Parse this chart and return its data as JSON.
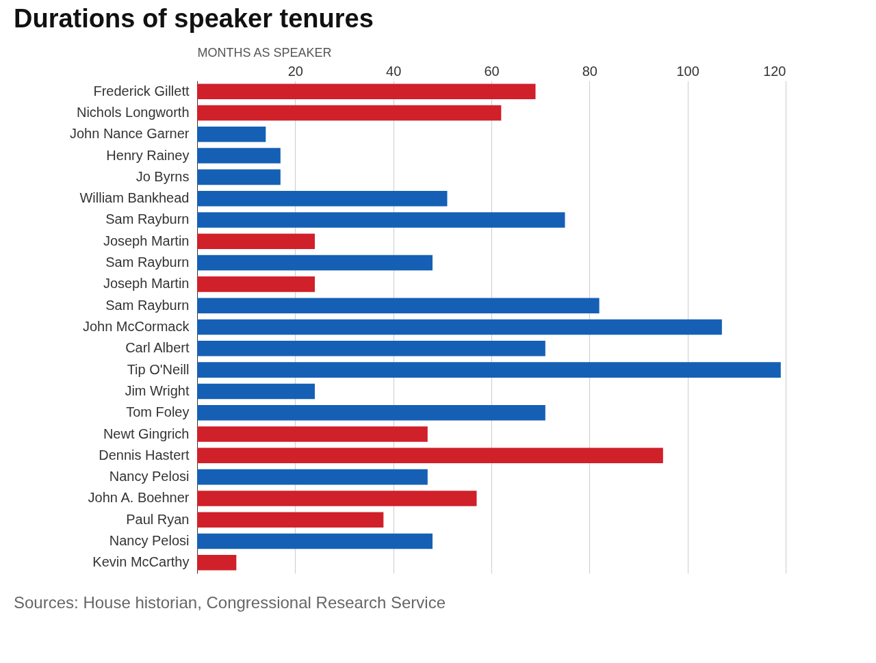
{
  "chart_data": {
    "type": "bar",
    "orientation": "horizontal",
    "title": "Durations of speaker tenures",
    "xlabel": "MONTHS AS SPEAKER",
    "categories": [
      "Frederick Gillett",
      "Nichols Longworth",
      "John Nance Garner",
      "Henry Rainey",
      "Jo Byrns",
      "William Bankhead",
      "Sam Rayburn",
      "Joseph Martin",
      "Sam Rayburn",
      "Joseph Martin",
      "Sam Rayburn",
      "John McCormack",
      "Carl Albert",
      "Tip O'Neill",
      "Jim Wright",
      "Tom Foley",
      "Newt Gingrich",
      "Dennis Hastert",
      "Nancy Pelosi",
      "John A. Boehner",
      "Paul Ryan",
      "Nancy Pelosi",
      "Kevin McCarthy"
    ],
    "values": [
      69,
      62,
      14,
      17,
      17,
      51,
      75,
      24,
      48,
      24,
      82,
      107,
      71,
      119,
      24,
      71,
      47,
      95,
      47,
      57,
      38,
      48,
      8
    ],
    "colors": [
      "#d0202a",
      "#d0202a",
      "#1560b5",
      "#1560b5",
      "#1560b5",
      "#1560b5",
      "#1560b5",
      "#d0202a",
      "#1560b5",
      "#d0202a",
      "#1560b5",
      "#1560b5",
      "#1560b5",
      "#1560b5",
      "#1560b5",
      "#1560b5",
      "#d0202a",
      "#d0202a",
      "#1560b5",
      "#d0202a",
      "#d0202a",
      "#1560b5",
      "#d0202a"
    ],
    "xlim": [
      0,
      120
    ],
    "xticks": [
      20,
      40,
      60,
      80,
      100,
      120
    ],
    "grid": "x",
    "annotations": [
      "Sources: House historian, Congressional Research Service"
    ]
  }
}
